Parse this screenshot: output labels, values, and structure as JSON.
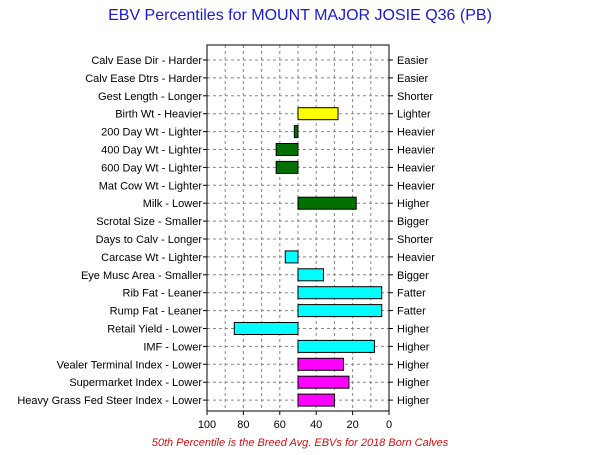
{
  "title": "EBV Percentiles for MOUNT MAJOR JOSIE Q36 (PB)",
  "footnote": "50th Percentile is the Breed Avg. EBVs for 2018 Born Calves",
  "chart_data": {
    "type": "bar",
    "orientation": "horizontal",
    "title": "EBV Percentiles for MOUNT MAJOR JOSIE Q36 (PB)",
    "xlabel": "",
    "ylabel": "",
    "xlim": [
      100,
      0
    ],
    "x_ticks": [
      100,
      80,
      60,
      40,
      20,
      0
    ],
    "grid": true,
    "legend": "none",
    "baseline": 50,
    "traits": [
      {
        "left_label": "Calv Ease Dir - Harder",
        "right_label": "Easier",
        "value": null,
        "color": null
      },
      {
        "left_label": "Calv Ease Dtrs - Harder",
        "right_label": "Easier",
        "value": null,
        "color": null
      },
      {
        "left_label": "Gest Length - Longer",
        "right_label": "Shorter",
        "value": null,
        "color": null
      },
      {
        "left_label": "Birth Wt - Heavier",
        "right_label": "Lighter",
        "value": 28,
        "color": "#ffff00"
      },
      {
        "left_label": "200 Day Wt - Lighter",
        "right_label": "Heavier",
        "value": 52,
        "color": "#007000"
      },
      {
        "left_label": "400 Day Wt - Lighter",
        "right_label": "Heavier",
        "value": 62,
        "color": "#007000"
      },
      {
        "left_label": "600 Day Wt - Lighter",
        "right_label": "Heavier",
        "value": 62,
        "color": "#007000"
      },
      {
        "left_label": "Mat Cow Wt - Lighter",
        "right_label": "Heavier",
        "value": null,
        "color": null
      },
      {
        "left_label": "Milk - Lower",
        "right_label": "Higher",
        "value": 18,
        "color": "#007000"
      },
      {
        "left_label": "Scrotal Size - Smaller",
        "right_label": "Bigger",
        "value": null,
        "color": null
      },
      {
        "left_label": "Days to Calv - Longer",
        "right_label": "Shorter",
        "value": null,
        "color": null
      },
      {
        "left_label": "Carcase Wt - Lighter",
        "right_label": "Heavier",
        "value": 57,
        "color": "#00ffff"
      },
      {
        "left_label": "Eye Musc Area - Smaller",
        "right_label": "Bigger",
        "value": 36,
        "color": "#00ffff"
      },
      {
        "left_label": "Rib Fat - Leaner",
        "right_label": "Fatter",
        "value": 4,
        "color": "#00ffff"
      },
      {
        "left_label": "Rump Fat - Leaner",
        "right_label": "Fatter",
        "value": 4,
        "color": "#00ffff"
      },
      {
        "left_label": "Retail Yield - Lower",
        "right_label": "Higher",
        "value": 85,
        "color": "#00ffff"
      },
      {
        "left_label": "IMF - Lower",
        "right_label": "Higher",
        "value": 8,
        "color": "#00ffff"
      },
      {
        "left_label": "Vealer Terminal Index - Lower",
        "right_label": "Higher",
        "value": 25,
        "color": "#ff00ff"
      },
      {
        "left_label": "Supermarket Index - Lower",
        "right_label": "Higher",
        "value": 22,
        "color": "#ff00ff"
      },
      {
        "left_label": "Heavy Grass Fed Steer Index - Lower",
        "right_label": "Higher",
        "value": 30,
        "color": "#ff00ff"
      }
    ]
  }
}
